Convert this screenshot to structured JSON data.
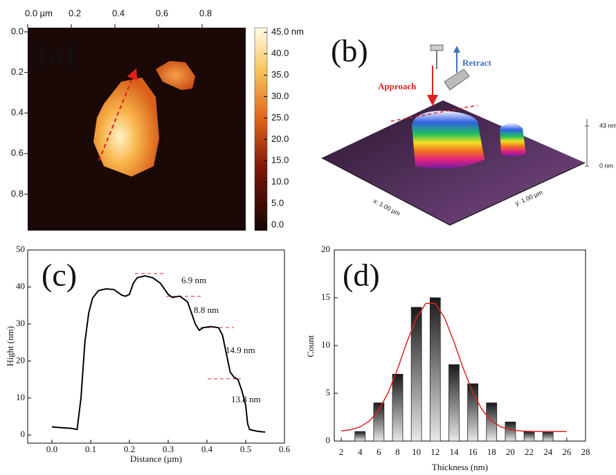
{
  "chart_data": [
    {
      "type": "image",
      "panel_label": "(a)",
      "xlim": [
        0,
        1
      ],
      "ylim": [
        0,
        1
      ],
      "xticks": [
        {
          "value": 0,
          "label": "0.0 µm"
        },
        0.2,
        0.4,
        0.6,
        0.8
      ],
      "yticks": [
        {
          "value": 0,
          "label": "0.0"
        },
        0.2,
        0.4,
        0.6,
        0.8
      ],
      "colorbar": {
        "lim": [
          -1.3,
          46.1
        ],
        "ticks": [
          {
            "value": 45,
            "label": "45.0 nm"
          },
          {
            "value": 40,
            "label": "40.0"
          },
          {
            "value": 35,
            "label": "35.0"
          },
          {
            "value": 30,
            "label": "30.0"
          },
          {
            "value": 25,
            "label": "25.0"
          },
          {
            "value": 20,
            "label": "20.0"
          },
          {
            "value": 15,
            "label": "15.0"
          },
          {
            "value": 10,
            "label": "10.0"
          },
          {
            "value": 5,
            "label": "5.0"
          },
          {
            "value": 0,
            "label": "0.0"
          }
        ]
      }
    },
    {
      "type": "surface3d",
      "panel_label": "(b)",
      "annotations": [
        "Approach",
        "Retract"
      ],
      "x_label": "x: 1.00 µm",
      "y_label": "y: 1.00 µm",
      "zlim": [
        0,
        43
      ],
      "zticks": [
        {
          "value": 43,
          "label": "43 nm"
        },
        {
          "value": 0,
          "label": "0 nm"
        }
      ]
    },
    {
      "type": "line",
      "panel_label": "(c)",
      "x_label": "Distance (µm)",
      "y_label": "Hight (nm)",
      "x": [
        0.0,
        0.02,
        0.05,
        0.065,
        0.075,
        0.085,
        0.095,
        0.105,
        0.12,
        0.14,
        0.16,
        0.18,
        0.19,
        0.2,
        0.21,
        0.22,
        0.24,
        0.26,
        0.28,
        0.3,
        0.31,
        0.33,
        0.35,
        0.36,
        0.37,
        0.38,
        0.39,
        0.41,
        0.43,
        0.44,
        0.45,
        0.46,
        0.47,
        0.48,
        0.49,
        0.5,
        0.505,
        0.51,
        0.53,
        0.55
      ],
      "series": [
        {
          "color": "#000000",
          "values": [
            2.2,
            2.0,
            1.8,
            1.5,
            10,
            25,
            33,
            37,
            39,
            39.5,
            39.3,
            37.8,
            37.5,
            38,
            41,
            42.5,
            43,
            42.5,
            41,
            38,
            37.2,
            37.5,
            36,
            33,
            30,
            28.3,
            29,
            29.3,
            29,
            27,
            22,
            17,
            15.6,
            15,
            12,
            8,
            3,
            1.5,
            1,
            0.8
          ]
        }
      ],
      "xlim": [
        -0.0625,
        0.6
      ],
      "ylim": [
        -2.2,
        50
      ],
      "xticks": [
        {
          "value": 0,
          "label": "0.0"
        },
        0.1,
        0.2,
        0.3,
        0.4,
        0.5,
        0.6
      ],
      "yticks": [
        0,
        10,
        20,
        30,
        40,
        50
      ],
      "annotations": [
        "6.9 nm",
        "8.8 nm",
        "14.9 nm",
        "13.8 nm"
      ]
    },
    {
      "type": "bar",
      "panel_label": "(d)",
      "x_label": "Thickness (nm)",
      "y_label": "Count",
      "x": [
        4,
        6,
        8,
        10,
        12,
        14,
        16,
        18,
        20,
        22,
        24
      ],
      "values": [
        1,
        4,
        7,
        14,
        15,
        8,
        6,
        4,
        2,
        1,
        1
      ],
      "fit": {
        "color": "#e02020",
        "x": [
          2,
          3,
          4,
          5,
          6,
          7,
          8,
          9,
          10,
          11,
          12,
          13,
          14,
          15,
          16,
          17,
          18,
          19,
          20,
          21,
          22,
          23,
          24,
          25,
          26
        ],
        "values": [
          1.06,
          1.19,
          1.48,
          2.1,
          3.25,
          5.08,
          7.57,
          10.38,
          12.9,
          14.4,
          14.4,
          12.9,
          10.38,
          7.57,
          5.08,
          3.25,
          2.1,
          1.48,
          1.19,
          1.06,
          1.02,
          1.0,
          1.0,
          1.0,
          1.0
        ]
      },
      "xlim": [
        1.26,
        28
      ],
      "ylim": [
        0,
        20
      ],
      "xticks": [
        2,
        4,
        6,
        8,
        10,
        12,
        14,
        16,
        18,
        20,
        22,
        24,
        26,
        28
      ],
      "yticks": [
        0,
        5,
        10,
        15,
        20
      ]
    }
  ]
}
